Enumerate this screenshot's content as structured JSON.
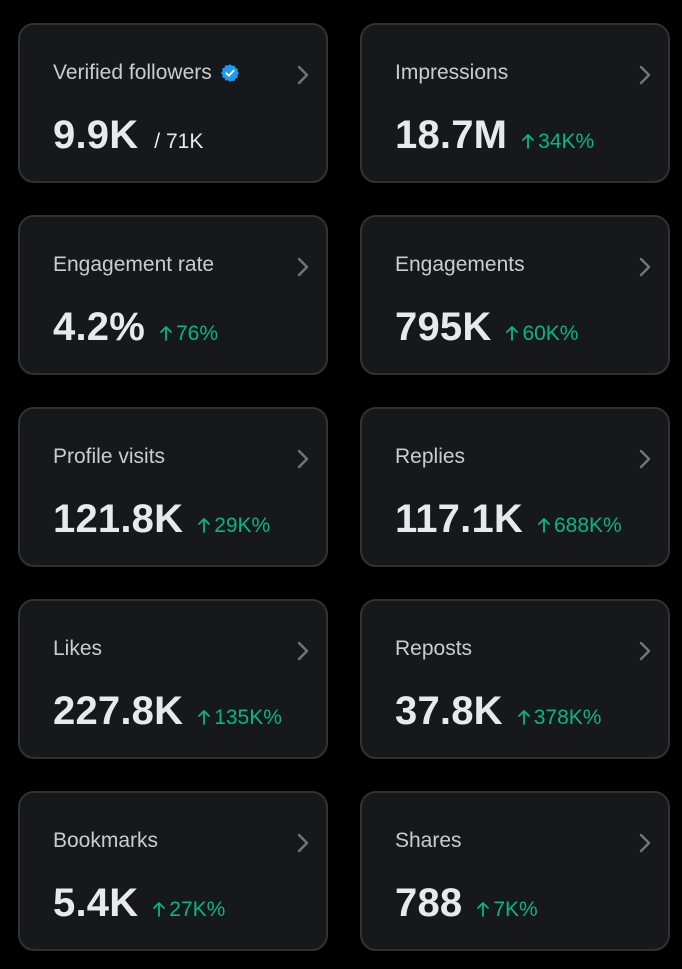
{
  "colors": {
    "background": "#000000",
    "card": "#16181c",
    "card_border": "#2f3336",
    "text_primary": "#e7e9ea",
    "text_secondary": "#c9cdd1",
    "positive": "#00ba7c",
    "verified": "#1d9bf0",
    "chevron": "#71767b"
  },
  "cards": [
    {
      "title": "Verified followers",
      "value": "9.9K",
      "sub": "/ 71K",
      "change": "",
      "icon": "verified-badge-icon"
    },
    {
      "title": "Impressions",
      "value": "18.7M",
      "sub": "",
      "change": "34K%"
    },
    {
      "title": "Engagement rate",
      "value": "4.2%",
      "sub": "",
      "change": "76%"
    },
    {
      "title": "Engagements",
      "value": "795K",
      "sub": "",
      "change": "60K%"
    },
    {
      "title": "Profile visits",
      "value": "121.8K",
      "sub": "",
      "change": "29K%"
    },
    {
      "title": "Replies",
      "value": "117.1K",
      "sub": "",
      "change": "688K%"
    },
    {
      "title": "Likes",
      "value": "227.8K",
      "sub": "",
      "change": "135K%"
    },
    {
      "title": "Reposts",
      "value": "37.8K",
      "sub": "",
      "change": "378K%"
    },
    {
      "title": "Bookmarks",
      "value": "5.4K",
      "sub": "",
      "change": "27K%"
    },
    {
      "title": "Shares",
      "value": "788",
      "sub": "",
      "change": "7K%"
    }
  ]
}
